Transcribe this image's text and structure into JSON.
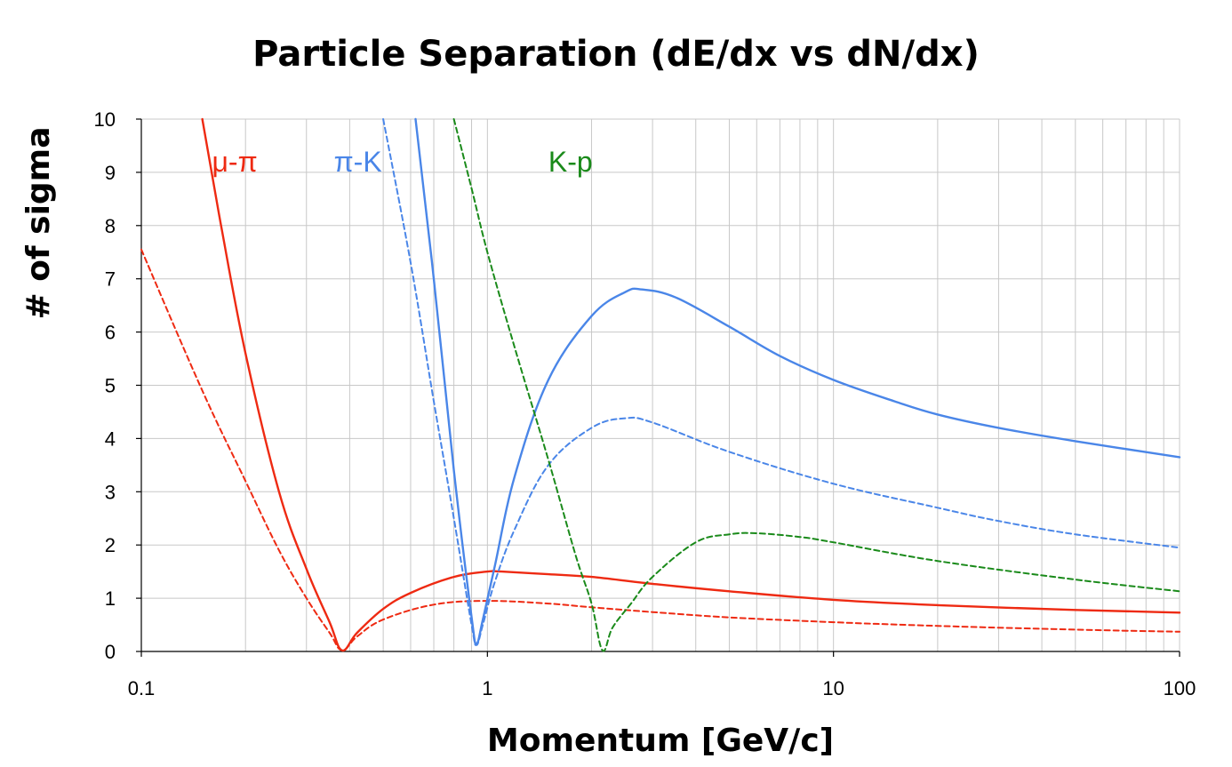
{
  "chart_data": {
    "type": "line",
    "title": "Particle Separation (dE/dx vs dN/dx)",
    "xlabel": "Momentum [GeV/c]",
    "ylabel": "# of sigma",
    "xscale": "log",
    "xlim": [
      0.1,
      100
    ],
    "ylim": [
      0,
      10
    ],
    "xticks": [
      "0.1",
      "1",
      "10",
      "100"
    ],
    "yticks": [
      "0",
      "1",
      "2",
      "3",
      "4",
      "5",
      "6",
      "7",
      "8",
      "9",
      "10"
    ],
    "grid": true,
    "annotations": [
      {
        "text": "μ-π",
        "color": "#ee2a12"
      },
      {
        "text": "π-K",
        "color": "#4a86e8"
      },
      {
        "text": "K-p",
        "color": "#1a8a1a"
      }
    ],
    "series": [
      {
        "pair": "μ-π",
        "style": "solid",
        "color": "#ee2a12",
        "x": [
          0.15,
          0.17,
          0.2,
          0.25,
          0.3,
          0.35,
          0.38,
          0.42,
          0.5,
          0.6,
          0.8,
          1.0,
          1.1,
          1.5,
          2,
          3,
          5,
          10,
          20,
          50,
          100
        ],
        "y": [
          10,
          8.0,
          5.6,
          3.0,
          1.55,
          0.55,
          0.02,
          0.35,
          0.8,
          1.1,
          1.4,
          1.5,
          1.5,
          1.45,
          1.4,
          1.27,
          1.13,
          0.97,
          0.87,
          0.78,
          0.73
        ]
      },
      {
        "pair": "μ-π",
        "style": "dashed",
        "color": "#ee2a12",
        "x": [
          0.1,
          0.15,
          0.2,
          0.25,
          0.3,
          0.35,
          0.38,
          0.42,
          0.5,
          0.7,
          1.0,
          1.5,
          2,
          3,
          5,
          10,
          20,
          50,
          100
        ],
        "y": [
          7.55,
          4.9,
          3.2,
          1.9,
          1.0,
          0.35,
          0.02,
          0.28,
          0.6,
          0.88,
          0.95,
          0.9,
          0.83,
          0.74,
          0.64,
          0.55,
          0.48,
          0.41,
          0.37
        ]
      },
      {
        "pair": "π-K",
        "style": "solid",
        "color": "#4a86e8",
        "x": [
          0.62,
          0.7,
          0.8,
          0.9,
          0.93,
          0.97,
          1.05,
          1.2,
          1.5,
          2,
          2.5,
          2.8,
          3.5,
          5,
          7,
          10,
          15,
          20,
          30,
          50,
          100
        ],
        "y": [
          10,
          7.0,
          3.4,
          0.65,
          0.15,
          0.6,
          1.6,
          3.3,
          5.1,
          6.3,
          6.75,
          6.8,
          6.65,
          6.1,
          5.55,
          5.1,
          4.7,
          4.45,
          4.2,
          3.95,
          3.65
        ]
      },
      {
        "pair": "π-K",
        "style": "dashed",
        "color": "#4a86e8",
        "x": [
          0.5,
          0.6,
          0.7,
          0.8,
          0.9,
          0.93,
          0.97,
          1.05,
          1.2,
          1.5,
          2,
          2.5,
          3,
          5,
          10,
          20,
          30,
          50,
          100
        ],
        "y": [
          10,
          7.3,
          4.7,
          2.5,
          0.5,
          0.12,
          0.5,
          1.3,
          2.3,
          3.5,
          4.2,
          4.38,
          4.3,
          3.75,
          3.15,
          2.7,
          2.45,
          2.2,
          1.95
        ]
      },
      {
        "pair": "K-p",
        "style": "dashed",
        "color": "#1a8a1a",
        "x": [
          0.8,
          0.9,
          1.0,
          1.2,
          1.5,
          1.8,
          2.0,
          2.15,
          2.3,
          2.6,
          3.0,
          4.0,
          5.0,
          6.0,
          8.0,
          10,
          20,
          50,
          100
        ],
        "y": [
          10,
          8.7,
          7.5,
          5.7,
          3.6,
          1.8,
          0.9,
          0.02,
          0.45,
          0.9,
          1.4,
          2.05,
          2.2,
          2.22,
          2.15,
          2.05,
          1.7,
          1.35,
          1.13
        ]
      }
    ]
  }
}
